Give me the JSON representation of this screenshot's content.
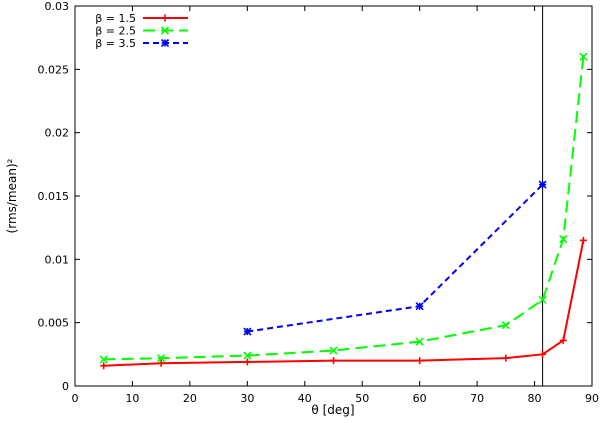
{
  "chart_data": {
    "type": "line",
    "xlabel": "θ [deg]",
    "ylabel": "(rms/mean)²",
    "xlim": [
      0,
      90
    ],
    "ylim": [
      0,
      0.03
    ],
    "xticks": [
      0,
      10,
      20,
      30,
      40,
      50,
      60,
      70,
      80,
      90
    ],
    "yticks": [
      0,
      0.005,
      0.01,
      0.015,
      0.02,
      0.025,
      0.03
    ],
    "ytick_labels": [
      "0",
      "0.005",
      "0.01",
      "0.015",
      "0.02",
      "0.025",
      "0.03"
    ],
    "vline_x": 81.4,
    "grid": false,
    "legend_position": "top-left",
    "series": [
      {
        "name": "β = 1.5",
        "color": "#ff0000",
        "marker": "plus",
        "dash": "solid",
        "x": [
          5,
          15,
          30,
          45,
          60,
          75,
          81.4,
          85,
          88.5
        ],
        "y": [
          0.0016,
          0.0018,
          0.0019,
          0.002,
          0.002,
          0.0022,
          0.0025,
          0.0036,
          0.0115
        ]
      },
      {
        "name": "β = 2.5",
        "color": "#00ff00",
        "marker": "cross",
        "dash": "long",
        "x": [
          5,
          15,
          30,
          45,
          60,
          75,
          81.4,
          85,
          88.5
        ],
        "y": [
          0.0021,
          0.0022,
          0.0024,
          0.0028,
          0.0035,
          0.0048,
          0.0068,
          0.0116,
          0.026
        ]
      },
      {
        "name": "β = 3.5",
        "color": "#0000ff",
        "marker": "star",
        "dash": "short",
        "x": [
          30,
          60,
          81.4
        ],
        "y": [
          0.0043,
          0.0063,
          0.0159
        ]
      }
    ]
  }
}
